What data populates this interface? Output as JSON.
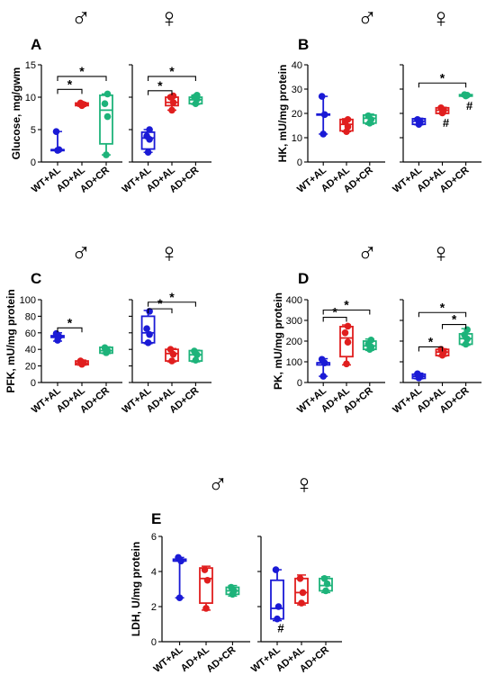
{
  "colors": {
    "WT+AL": "#1a1ad6",
    "AD+AL": "#e01e1e",
    "AD+CR": "#1db37a"
  },
  "chart_data": [
    {
      "panel": "A",
      "type": "box",
      "ylabel": "Glucose, mg/gwm",
      "ylim": [
        0,
        15
      ],
      "yticks": [
        0,
        5,
        10,
        15
      ],
      "categories": [
        "WT+AL",
        "AD+AL",
        "AD+CR"
      ],
      "male": {
        "symbol": "♂",
        "groups": [
          {
            "name": "WT+AL",
            "q1": 1.8,
            "median": 1.9,
            "q3": 1.9,
            "min": 1.8,
            "max": 4.7,
            "points": [
              1.8,
              1.9,
              4.7
            ]
          },
          {
            "name": "AD+AL",
            "q1": 8.7,
            "median": 8.9,
            "q3": 9.1,
            "min": 8.6,
            "max": 9.2,
            "points": [
              8.7,
              8.9,
              9.1
            ]
          },
          {
            "name": "AD+CR",
            "q1": 2.8,
            "median": 8.0,
            "q3": 10.3,
            "min": 1.1,
            "max": 10.5,
            "points": [
              1.1,
              7.0,
              9.0,
              10.5
            ]
          }
        ],
        "annotations": [
          {
            "from": 0,
            "to": 1,
            "level": 11.2,
            "text": "*"
          },
          {
            "from": 0,
            "to": 2,
            "level": 13.2,
            "text": "*"
          }
        ]
      },
      "female": {
        "symbol": "♀",
        "groups": [
          {
            "name": "WT+AL",
            "q1": 2.0,
            "median": 3.7,
            "q3": 4.6,
            "min": 1.5,
            "max": 5.0,
            "points": [
              1.5,
              3.5,
              4.0,
              5.0
            ]
          },
          {
            "name": "AD+AL",
            "q1": 8.7,
            "median": 9.2,
            "q3": 10.0,
            "min": 8.0,
            "max": 10.2,
            "points": [
              8.0,
              9.2,
              10.0,
              10.2
            ]
          },
          {
            "name": "AD+CR",
            "q1": 9.0,
            "median": 9.6,
            "q3": 10.0,
            "min": 8.9,
            "max": 10.3,
            "points": [
              9.0,
              9.7,
              10.0,
              10.3
            ]
          }
        ],
        "annotations": [
          {
            "from": 0,
            "to": 1,
            "level": 11.0,
            "text": "*"
          },
          {
            "from": 0,
            "to": 2,
            "level": 13.2,
            "text": "*"
          }
        ]
      }
    },
    {
      "panel": "B",
      "type": "box",
      "ylabel": "HK, mU/mg protein",
      "ylim": [
        0,
        40
      ],
      "yticks": [
        0,
        10,
        20,
        30,
        40
      ],
      "categories": [
        "WT+AL",
        "AD+AL",
        "AD+CR"
      ],
      "male": {
        "symbol": "♂",
        "groups": [
          {
            "name": "WT+AL",
            "q1": 19.5,
            "median": 19.5,
            "q3": 19.7,
            "min": 11.5,
            "max": 27.0,
            "points": [
              11.5,
              19.5,
              27.0
            ]
          },
          {
            "name": "AD+AL",
            "q1": 12.8,
            "median": 15.5,
            "q3": 17.5,
            "min": 12.5,
            "max": 17.8,
            "points": [
              12.5,
              14.5,
              16.5,
              17.5
            ]
          },
          {
            "name": "AD+CR",
            "q1": 16.0,
            "median": 18.0,
            "q3": 19.3,
            "min": 15.5,
            "max": 19.7,
            "points": [
              16.0,
              17.5,
              19.0
            ]
          }
        ],
        "annotations": []
      },
      "female": {
        "symbol": "♀",
        "groups": [
          {
            "name": "WT+AL",
            "q1": 15.5,
            "median": 16.8,
            "q3": 17.8,
            "min": 15.3,
            "max": 18.0,
            "points": [
              15.5,
              16.5,
              17.5
            ]
          },
          {
            "name": "AD+AL",
            "q1": 20.0,
            "median": 21.3,
            "q3": 22.3,
            "min": 20.0,
            "max": 22.5,
            "points": [
              20.2,
              21.3,
              22.3
            ],
            "mark": "#"
          },
          {
            "name": "AD+CR",
            "q1": 27.1,
            "median": 27.4,
            "q3": 27.7,
            "min": 27.0,
            "max": 27.8,
            "points": [
              27.2,
              27.5,
              27.7
            ],
            "mark": "#"
          }
        ],
        "annotations": [
          {
            "from": 0,
            "to": 2,
            "level": 32.5,
            "text": "*"
          }
        ]
      }
    },
    {
      "panel": "C",
      "type": "box",
      "ylabel": "PFK, mU/mg protein",
      "ylim": [
        0,
        100
      ],
      "yticks": [
        0,
        20,
        40,
        60,
        80,
        100
      ],
      "categories": [
        "WT+AL",
        "AD+AL",
        "AD+CR"
      ],
      "male": {
        "symbol": "♂",
        "groups": [
          {
            "name": "WT+AL",
            "q1": 54.5,
            "median": 56.0,
            "q3": 56.5,
            "min": 50.0,
            "max": 60.0,
            "points": [
              51.0,
              55.5,
              59.0
            ]
          },
          {
            "name": "AD+AL",
            "q1": 21.5,
            "median": 23.5,
            "q3": 26.0,
            "min": 21.0,
            "max": 27.0,
            "points": [
              22.0,
              24.0,
              26.0
            ]
          },
          {
            "name": "AD+CR",
            "q1": 35.5,
            "median": 38.5,
            "q3": 42.5,
            "min": 35.0,
            "max": 43.0,
            "points": [
              36.0,
              38.5,
              42.0
            ]
          }
        ],
        "annotations": [
          {
            "from": 0,
            "to": 1,
            "level": 66.0,
            "text": "*"
          }
        ]
      },
      "female": {
        "symbol": "♀",
        "groups": [
          {
            "name": "WT+AL",
            "q1": 48.0,
            "median": 60.0,
            "q3": 80.0,
            "min": 47.0,
            "max": 87.0,
            "points": [
              48.0,
              58.0,
              65.0,
              86.0
            ]
          },
          {
            "name": "AD+AL",
            "q1": 26.0,
            "median": 35.0,
            "q3": 40.0,
            "min": 25.0,
            "max": 41.0,
            "points": [
              26.0,
              34.0,
              40.0
            ]
          },
          {
            "name": "AD+CR",
            "q1": 26.0,
            "median": 33.5,
            "q3": 38.5,
            "min": 25.0,
            "max": 39.0,
            "points": [
              27.0,
              33.5,
              38.0
            ]
          }
        ],
        "annotations": [
          {
            "from": 0,
            "to": 1,
            "level": 89.0,
            "text": "*"
          },
          {
            "from": 0,
            "to": 2,
            "level": 97.0,
            "text": "*"
          }
        ]
      }
    },
    {
      "panel": "D",
      "type": "box",
      "ylabel": "PK, mU/mg protein",
      "ylim": [
        0,
        400
      ],
      "yticks": [
        0,
        100,
        200,
        300,
        400
      ],
      "categories": [
        "WT+AL",
        "AD+AL",
        "AD+CR"
      ],
      "male": {
        "symbol": "♂",
        "groups": [
          {
            "name": "WT+AL",
            "q1": 85,
            "median": 95,
            "q3": 95,
            "min": 30,
            "max": 115,
            "points": [
              30,
              95,
              112
            ]
          },
          {
            "name": "AD+AL",
            "q1": 125,
            "median": 215,
            "q3": 270,
            "min": 85,
            "max": 278,
            "points": [
              90,
              195,
              240,
              272
            ]
          },
          {
            "name": "AD+CR",
            "q1": 160,
            "median": 177,
            "q3": 200,
            "min": 155,
            "max": 210,
            "points": [
              160,
              172,
              185,
              205
            ]
          }
        ],
        "annotations": [
          {
            "from": 0,
            "to": 1,
            "level": 315,
            "text": "*"
          },
          {
            "from": 0,
            "to": 2,
            "level": 350,
            "text": "*"
          }
        ]
      },
      "female": {
        "symbol": "♀",
        "groups": [
          {
            "name": "WT+AL",
            "q1": 20,
            "median": 30,
            "q3": 40,
            "min": 18,
            "max": 45,
            "points": [
              22,
              32,
              42
            ]
          },
          {
            "name": "AD+AL",
            "q1": 130,
            "median": 147,
            "q3": 160,
            "min": 127,
            "max": 163,
            "points": [
              132,
              147,
              160
            ]
          },
          {
            "name": "AD+CR",
            "q1": 185,
            "median": 212,
            "q3": 235,
            "min": 180,
            "max": 260,
            "points": [
              185,
              210,
              230,
              255
            ]
          }
        ],
        "annotations": [
          {
            "from": 0,
            "to": 1,
            "level": 172,
            "text": "*"
          },
          {
            "from": 1,
            "to": 2,
            "level": 280,
            "text": "*"
          },
          {
            "from": 0,
            "to": 2,
            "level": 338,
            "text": "*"
          }
        ]
      }
    },
    {
      "panel": "E",
      "type": "box",
      "ylabel": "LDH, U/mg protein",
      "ylim": [
        0,
        6
      ],
      "yticks": [
        0,
        2,
        4,
        6
      ],
      "categories": [
        "WT+AL",
        "AD+AL",
        "AD+CR"
      ],
      "male": {
        "symbol": "♂",
        "groups": [
          {
            "name": "WT+AL",
            "q1": 4.6,
            "median": 4.6,
            "q3": 4.7,
            "min": 2.5,
            "max": 4.8,
            "points": [
              2.5,
              4.6,
              4.8
            ]
          },
          {
            "name": "AD+AL",
            "q1": 2.2,
            "median": 3.6,
            "q3": 4.2,
            "min": 1.8,
            "max": 4.3,
            "points": [
              1.9,
              3.5,
              4.1
            ]
          },
          {
            "name": "AD+CR",
            "q1": 2.7,
            "median": 2.9,
            "q3": 3.1,
            "min": 2.6,
            "max": 3.2,
            "points": [
              2.7,
              2.9,
              3.1
            ]
          }
        ],
        "annotations": []
      },
      "female": {
        "symbol": "♀",
        "groups": [
          {
            "name": "WT+AL",
            "q1": 1.3,
            "median": 1.9,
            "q3": 3.5,
            "min": 1.2,
            "max": 4.1,
            "points": [
              1.3,
              2.0,
              4.1
            ],
            "mark": "#"
          },
          {
            "name": "AD+AL",
            "q1": 2.2,
            "median": 2.8,
            "q3": 3.6,
            "min": 2.1,
            "max": 3.8,
            "points": [
              2.2,
              2.8,
              3.6
            ]
          },
          {
            "name": "AD+CR",
            "q1": 2.9,
            "median": 3.2,
            "q3": 3.6,
            "min": 2.8,
            "max": 3.7,
            "points": [
              2.9,
              3.3,
              3.6
            ]
          }
        ],
        "annotations": []
      }
    }
  ]
}
